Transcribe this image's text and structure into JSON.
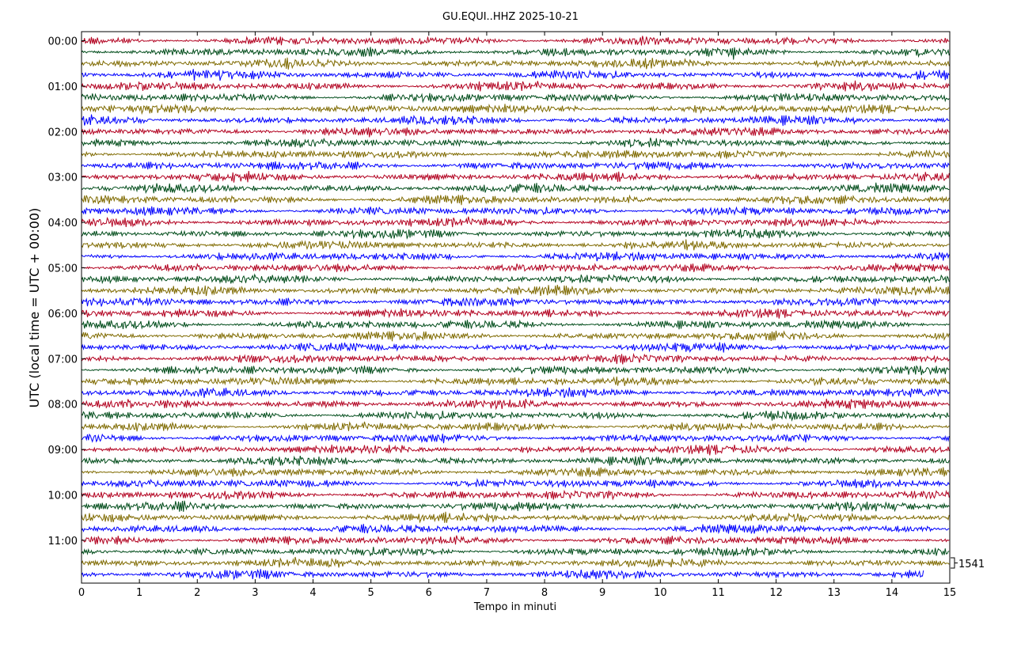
{
  "chart_data": {
    "type": "line",
    "title": "GU.EQUI..HHZ 2025-10-21",
    "xlabel": "Tempo in minuti",
    "ylabel": "UTC (local time = UTC + 00:00)",
    "xlim": [
      0,
      15
    ],
    "x_ticks": [
      "0",
      "1",
      "2",
      "3",
      "4",
      "5",
      "6",
      "7",
      "8",
      "9",
      "10",
      "11",
      "12",
      "13",
      "14",
      "15"
    ],
    "y_hour_labels": [
      "00:00",
      "01:00",
      "02:00",
      "03:00",
      "04:00",
      "05:00",
      "06:00",
      "07:00",
      "08:00",
      "09:00",
      "10:00",
      "11:00"
    ],
    "traces_per_hour": 4,
    "trace_count": 48,
    "trace_colors": [
      "#b2001f",
      "#004c1a",
      "#7f6a00",
      "#0000ff"
    ],
    "last_trace_end_minute": 14.55,
    "scale_label": "1541",
    "grid": false
  }
}
